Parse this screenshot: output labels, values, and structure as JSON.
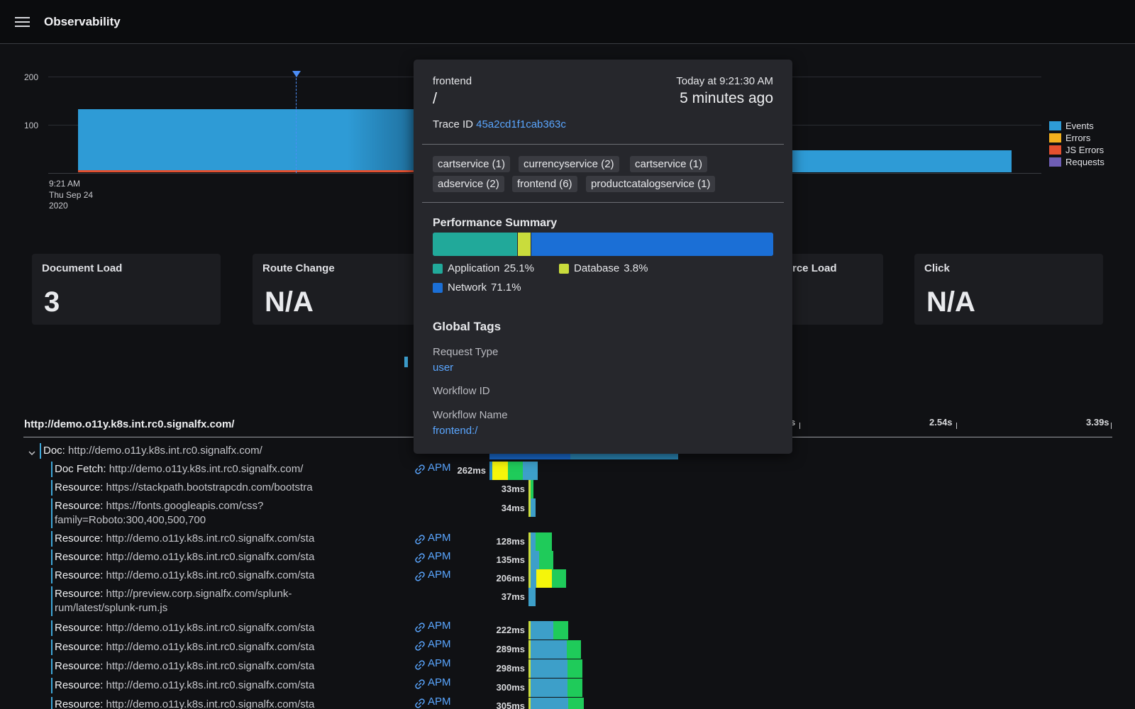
{
  "app": {
    "title": "Observability"
  },
  "chart": {
    "y_ticks": [
      "200",
      "100"
    ],
    "x_start": {
      "line1": "9:21 AM",
      "line2": "Thu Sep 24",
      "line3": "2020"
    },
    "legend": [
      {
        "label": "Events",
        "color": "#2e9bd6"
      },
      {
        "label": "Errors",
        "color": "#f2b01e"
      },
      {
        "label": "JS Errors",
        "color": "#e5502f"
      },
      {
        "label": "Requests",
        "color": "#6f5eb5"
      }
    ]
  },
  "cards": [
    {
      "title": "Document Load",
      "value": "3"
    },
    {
      "title": "Route Change",
      "value": "N/A"
    },
    {
      "title": "rce Load",
      "value": ""
    },
    {
      "title": "Click",
      "value": "N/A"
    }
  ],
  "waterfall": {
    "header_url": "http://demo.o11y.k8s.int.rc0.signalfx.com/",
    "ticks": [
      "s",
      "2.54s",
      "3.39s"
    ],
    "rows": [
      {
        "kind": "Doc:",
        "url": "http://demo.o11y.k8s.int.rc0.signalfx.com/",
        "apm": "",
        "duration": ""
      },
      {
        "kind": "Doc Fetch:",
        "url": "http://demo.o11y.k8s.int.rc0.signalfx.com/",
        "apm": "APM",
        "duration": "262ms"
      },
      {
        "kind": "Resource:",
        "url": "https://stackpath.bootstrapcdn.com/bootstra",
        "apm": "",
        "duration": "33ms"
      },
      {
        "kind": "Resource:",
        "url": "https://fonts.googleapis.com/css?",
        "url2": "family=Roboto:300,400,500,700",
        "apm": "",
        "duration": "34ms"
      },
      {
        "kind": "Resource:",
        "url": "http://demo.o11y.k8s.int.rc0.signalfx.com/sta",
        "apm": "APM",
        "duration": "128ms"
      },
      {
        "kind": "Resource:",
        "url": "http://demo.o11y.k8s.int.rc0.signalfx.com/sta",
        "apm": "APM",
        "duration": "135ms"
      },
      {
        "kind": "Resource:",
        "url": "http://demo.o11y.k8s.int.rc0.signalfx.com/sta",
        "apm": "APM",
        "duration": "206ms"
      },
      {
        "kind": "Resource:",
        "url": "http://preview.corp.signalfx.com/splunk-",
        "url2": "rum/latest/splunk-rum.js",
        "apm": "",
        "duration": "37ms"
      },
      {
        "kind": "Resource:",
        "url": "http://demo.o11y.k8s.int.rc0.signalfx.com/sta",
        "apm": "APM",
        "duration": "222ms"
      },
      {
        "kind": "Resource:",
        "url": "http://demo.o11y.k8s.int.rc0.signalfx.com/sta",
        "apm": "APM",
        "duration": "289ms"
      },
      {
        "kind": "Resource:",
        "url": "http://demo.o11y.k8s.int.rc0.signalfx.com/sta",
        "apm": "APM",
        "duration": "298ms"
      },
      {
        "kind": "Resource:",
        "url": "http://demo.o11y.k8s.int.rc0.signalfx.com/sta",
        "apm": "APM",
        "duration": "300ms"
      },
      {
        "kind": "Resource:",
        "url": "http://demo.o11y.k8s.int.rc0.signalfx.com/sta",
        "apm": "APM",
        "duration": "305ms"
      }
    ]
  },
  "popup": {
    "service": "frontend",
    "route": "/",
    "time": "Today at 9:21:30 AM",
    "ago": "5 minutes ago",
    "trace_label": "Trace ID",
    "trace_id": "45a2cd1f1cab363c",
    "chips": [
      "cartservice (1)",
      "currencyservice (2)",
      "cartservice (1)",
      "adservice (2)",
      "frontend (6)",
      "productcatalogservice (1)"
    ],
    "perf_title": "Performance Summary",
    "perf": [
      {
        "label": "Application",
        "pct": "25.1%",
        "value": 25.1,
        "color": "#21a99a"
      },
      {
        "label": "Database",
        "pct": "3.8%",
        "value": 3.8,
        "color": "#c9dc3c"
      },
      {
        "label": "Network",
        "pct": "71.1%",
        "value": 71.1,
        "color": "#1b6fd6"
      }
    ],
    "tags_title": "Global Tags",
    "tags": [
      {
        "key": "Request Type",
        "value": "user"
      },
      {
        "key": "Workflow ID",
        "value": ""
      },
      {
        "key": "Workflow Name",
        "value": "frontend:/"
      }
    ]
  }
}
